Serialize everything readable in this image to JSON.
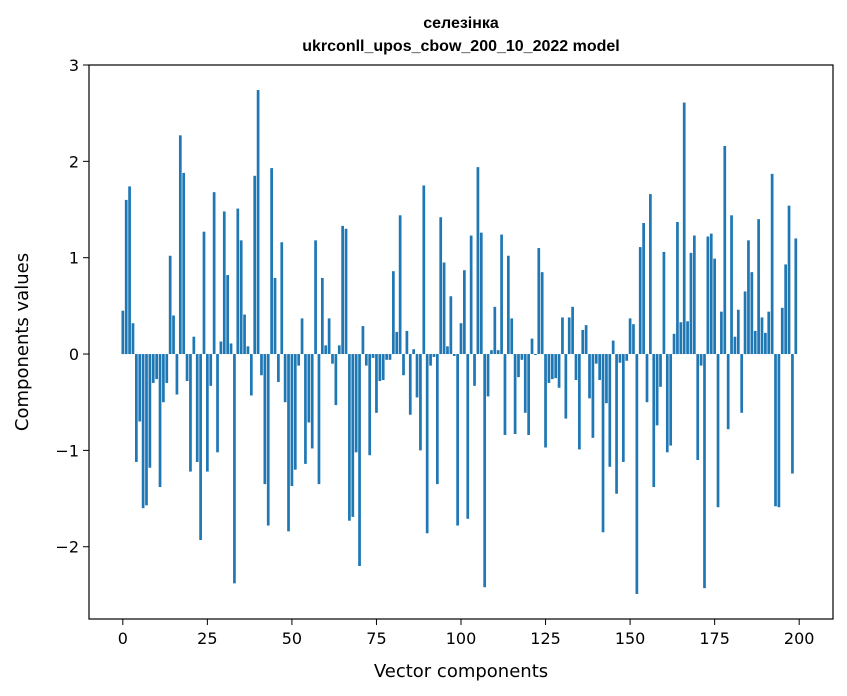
{
  "chart_data": {
    "type": "bar",
    "title": "селезінка",
    "subtitle": "ukrconll_upos_cbow_200_10_2022 model",
    "xlabel": "Vector components",
    "ylabel": "Components values",
    "xlim": [
      -10,
      210
    ],
    "ylim": [
      -2.75,
      3.0
    ],
    "xticks": [
      0,
      25,
      50,
      75,
      100,
      125,
      150,
      175,
      200
    ],
    "xtick_labels": [
      "0",
      "25",
      "50",
      "75",
      "100",
      "125",
      "150",
      "175",
      "200"
    ],
    "yticks": [
      -2,
      -1,
      0,
      1,
      2,
      3
    ],
    "ytick_labels": [
      "−2",
      "−1",
      "0",
      "1",
      "2",
      "3"
    ],
    "grid": false,
    "bar_color": "#1f77b4",
    "x": [
      0,
      1,
      2,
      3,
      4,
      5,
      6,
      7,
      8,
      9,
      10,
      11,
      12,
      13,
      14,
      15,
      16,
      17,
      18,
      19,
      20,
      21,
      22,
      23,
      24,
      25,
      26,
      27,
      28,
      29,
      30,
      31,
      32,
      33,
      34,
      35,
      36,
      37,
      38,
      39,
      40,
      41,
      42,
      43,
      44,
      45,
      46,
      47,
      48,
      49,
      50,
      51,
      52,
      53,
      54,
      55,
      56,
      57,
      58,
      59,
      60,
      61,
      62,
      63,
      64,
      65,
      66,
      67,
      68,
      69,
      70,
      71,
      72,
      73,
      74,
      75,
      76,
      77,
      78,
      79,
      80,
      81,
      82,
      83,
      84,
      85,
      86,
      87,
      88,
      89,
      90,
      91,
      92,
      93,
      94,
      95,
      96,
      97,
      98,
      99,
      100,
      101,
      102,
      103,
      104,
      105,
      106,
      107,
      108,
      109,
      110,
      111,
      112,
      113,
      114,
      115,
      116,
      117,
      118,
      119,
      120,
      121,
      122,
      123,
      124,
      125,
      126,
      127,
      128,
      129,
      130,
      131,
      132,
      133,
      134,
      135,
      136,
      137,
      138,
      139,
      140,
      141,
      142,
      143,
      144,
      145,
      146,
      147,
      148,
      149,
      150,
      151,
      152,
      153,
      154,
      155,
      156,
      157,
      158,
      159,
      160,
      161,
      162,
      163,
      164,
      165,
      166,
      167,
      168,
      169,
      170,
      171,
      172,
      173,
      174,
      175,
      176,
      177,
      178,
      179,
      180,
      181,
      182,
      183,
      184,
      185,
      186,
      187,
      188,
      189,
      190,
      191,
      192,
      193,
      194,
      195,
      196,
      197,
      198,
      199
    ],
    "values": [
      0.45,
      1.6,
      1.74,
      0.32,
      -1.12,
      -0.7,
      -1.6,
      -1.57,
      -1.18,
      -0.3,
      -0.26,
      -1.38,
      -0.5,
      -0.3,
      1.02,
      0.4,
      -0.42,
      2.27,
      1.88,
      -0.28,
      -1.22,
      0.18,
      -1.12,
      -1.93,
      1.27,
      -1.22,
      -0.33,
      1.68,
      -1.02,
      0.13,
      1.48,
      0.82,
      0.11,
      -2.38,
      1.51,
      1.18,
      0.41,
      0.08,
      -0.43,
      1.85,
      2.74,
      -0.22,
      -1.35,
      -1.78,
      1.93,
      0.79,
      -0.29,
      1.16,
      -0.5,
      -1.84,
      -1.37,
      -1.2,
      -0.12,
      0.37,
      -1.14,
      -0.71,
      -0.98,
      1.18,
      -1.35,
      0.79,
      0.09,
      0.37,
      -0.1,
      -0.53,
      0.09,
      1.33,
      1.3,
      -1.73,
      -1.69,
      -1.02,
      -2.2,
      0.29,
      -0.12,
      -1.05,
      -0.04,
      -0.61,
      -0.28,
      -0.27,
      -0.06,
      -0.06,
      0.86,
      0.23,
      1.44,
      -0.22,
      0.24,
      -0.63,
      0.05,
      -0.45,
      -1.0,
      1.75,
      -1.86,
      -0.12,
      -0.03,
      -1.35,
      1.42,
      0.95,
      0.08,
      0.6,
      -0.02,
      -1.78,
      0.32,
      0.87,
      -1.71,
      1.23,
      -0.33,
      1.94,
      1.26,
      -2.42,
      -0.44,
      0.04,
      0.49,
      0.04,
      1.24,
      -0.84,
      1.02,
      0.37,
      -0.83,
      -0.24,
      -0.06,
      -0.61,
      -0.84,
      0.16,
      -0.01,
      1.1,
      0.85,
      -0.97,
      -0.3,
      -0.26,
      -0.25,
      -0.35,
      0.38,
      -0.67,
      0.38,
      0.49,
      -0.27,
      -0.99,
      0.25,
      0.3,
      -0.46,
      -0.87,
      -0.1,
      -0.27,
      -1.85,
      -0.51,
      -1.17,
      0.14,
      -1.45,
      -0.09,
      -1.12,
      -0.07,
      0.37,
      0.31,
      -2.49,
      1.11,
      1.36,
      -0.5,
      1.66,
      -1.38,
      -0.74,
      -0.34,
      1.06,
      -1.02,
      -0.95,
      0.21,
      1.37,
      0.33,
      2.61,
      0.34,
      1.05,
      1.23,
      -1.1,
      -0.12,
      -2.43,
      1.22,
      1.25,
      0.99,
      -1.59,
      0.44,
      2.16,
      -0.78,
      1.44,
      0.18,
      0.46,
      -0.61,
      0.65,
      1.18,
      0.85,
      0.24,
      1.4,
      0.38,
      0.22,
      0.44,
      1.87,
      -1.58,
      -1.59,
      0.48,
      0.93,
      1.54,
      -1.24,
      1.2
    ]
  }
}
